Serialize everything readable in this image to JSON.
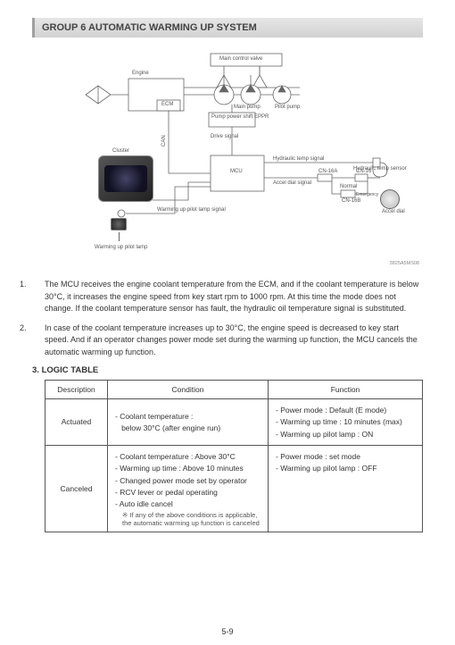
{
  "title": "GROUP 6  AUTOMATIC WARMING UP SYSTEM",
  "diagram": {
    "labels": {
      "main_control_valve": "Main control valve",
      "engine": "Engine",
      "ecm": "ECM",
      "main_pump": "Main pump",
      "pilot_pump": "Pilot pump",
      "pump_power_shift": "Pump power shift EPPR",
      "can": "CAN",
      "drive_signal": "Drive signal",
      "cluster": "Cluster",
      "mcu": "MCU",
      "hyd_temp_signal": "Hydraulic temp signal",
      "hyd_temp_sensor": "Hydraulic temp sensor",
      "accel_dial_signal": "Accel dial signal",
      "cn_16a": "CN-16A",
      "cn_16": "CN-16",
      "cn_16b": "CN-16B",
      "normal": "Normal",
      "emergency": "Emergency",
      "accel_dial": "Accel dial",
      "warming_lamp_signal": "Warming up pilot lamp signal",
      "warming_lamp": "Warming up pilot lamp"
    },
    "fig_ref": "3825A5MS08"
  },
  "para1": "The MCU receives the engine coolant temperature from the ECM, and if the coolant temperature is below 30°C, it increases the engine speed from key start rpm to 1000 rpm.   At this time the mode does not change. If the coolant temperature sensor has fault, the hydraulic oil temperature signal is substituted.",
  "para2": "In case of the coolant temperature increases up to 30°C, the engine speed is decreased to key start speed.   And if an operator changes power mode set during the warming up function, the MCU cancels the automatic warming up function.",
  "logic_title": "LOGIC  TABLE",
  "table": {
    "headers": {
      "c1": "Description",
      "c2": "Condition",
      "c3": "Function"
    },
    "rows": [
      {
        "desc": "Actuated",
        "cond": [
          "- Coolant temperature :",
          "   below 30°C  (after engine run)"
        ],
        "func": [
          "- Power mode : Default (E mode)",
          "- Warming up time : 10 minutes (max)",
          "- Warming up pilot lamp : ON"
        ]
      },
      {
        "desc": "Canceled",
        "cond": [
          "- Coolant temperature : Above 30°C",
          "- Warming up time : Above 10 minutes",
          "- Changed power mode set by operator",
          "- RCV lever or pedal operating",
          "- Auto idle cancel"
        ],
        "cond_note": "※ If any of the above conditions is applicable, the automatic warming up function is canceled",
        "func": [
          "- Power mode : set mode",
          "- Warming up pilot lamp : OFF"
        ]
      }
    ]
  },
  "page_number": "5-9"
}
